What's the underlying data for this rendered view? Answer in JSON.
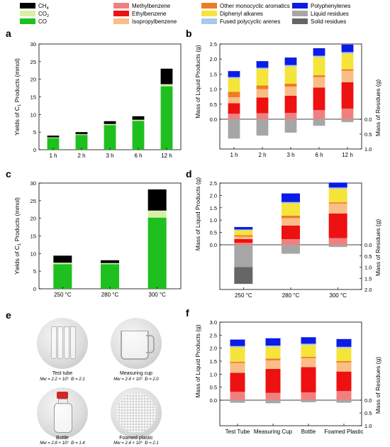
{
  "legend": {
    "items": [
      {
        "label": "CH",
        "sub": "4",
        "color": "#000000"
      },
      {
        "label": "Methylbenzene",
        "sub": "",
        "color": "#f08080"
      },
      {
        "label": "Other monocyclic aromatics",
        "sub": "",
        "color": "#f07a25"
      },
      {
        "label": "Polyphenylenes",
        "sub": "",
        "color": "#0a1ce6"
      },
      {
        "label": "CO",
        "sub": "2",
        "color": "#d8f0a6"
      },
      {
        "label": "Ethylbenzene",
        "sub": "",
        "color": "#ee1111"
      },
      {
        "label": "Diphenyl alkanes",
        "sub": "",
        "color": "#f5e43a"
      },
      {
        "label": "Liquid residues",
        "sub": "",
        "color": "#a6a6a6"
      },
      {
        "label": "CO",
        "sub": "",
        "color": "#1fbf1f"
      },
      {
        "label": "Isopropylbenzene",
        "sub": "",
        "color": "#f8be86"
      },
      {
        "label": "Fused polycyclic arenes",
        "sub": "",
        "color": "#a8c8ec"
      },
      {
        "label": "Solid residues",
        "sub": "",
        "color": "#666666"
      }
    ]
  },
  "panel_e": {
    "letter": "e",
    "items": [
      {
        "name": "Test tube",
        "mw": "Mw = 2.2 × 10⁵",
        "d": "Đ = 2.1"
      },
      {
        "name": "Measuring cup",
        "mw": "Mw = 2.4 × 10⁵",
        "d": "Đ = 2.0"
      },
      {
        "name": "Bottle",
        "mw": "Mw = 2.8 × 10⁵",
        "d": "Đ = 1.4"
      },
      {
        "name": "Foamed plastic",
        "mw": "Mw = 2.4 × 10⁵",
        "d": "Đ = 2.1"
      }
    ]
  },
  "chart_data": [
    {
      "id": "a",
      "letter": "a",
      "type": "bar",
      "categories": [
        "1 h",
        "2 h",
        "3 h",
        "6 h",
        "12 h"
      ],
      "ylabel": "Yields of C",
      "ylabel_sub": "1",
      "ylabel_tail": " Products (mmol)",
      "ylim": [
        0,
        30
      ],
      "yticks": [
        0,
        5,
        10,
        15,
        20,
        25,
        30
      ],
      "series": [
        {
          "key": "CO",
          "color": "#1fbf1f",
          "values": [
            3.3,
            4.2,
            7.0,
            8.2,
            18.0
          ]
        },
        {
          "key": "CO2",
          "color": "#d8f0a6",
          "values": [
            0.2,
            0.2,
            0.3,
            0.3,
            0.6
          ]
        },
        {
          "key": "CH4",
          "color": "#000000",
          "values": [
            0.5,
            0.6,
            0.8,
            1.0,
            4.4
          ]
        }
      ]
    },
    {
      "id": "b",
      "letter": "b",
      "type": "bar",
      "categories": [
        "1 h",
        "2 h",
        "3 h",
        "6 h",
        "12 h"
      ],
      "ylabel": "Mass of Liquid Products (g)",
      "y2label": "Mass of Residues (g)",
      "ylim": [
        0,
        2.5
      ],
      "yticks": [
        0.0,
        0.5,
        1.0,
        1.5,
        2.0,
        2.5
      ],
      "y2lim": [
        0,
        1.0
      ],
      "y2ticks": [
        0.0,
        0.5,
        1.0
      ],
      "series": [
        {
          "key": "Methylbenzene",
          "color": "#f08080",
          "values": [
            0.18,
            0.2,
            0.21,
            0.3,
            0.35
          ]
        },
        {
          "key": "Ethylbenzene",
          "color": "#ee1111",
          "values": [
            0.35,
            0.52,
            0.57,
            0.75,
            0.88
          ]
        },
        {
          "key": "Isopropylbenzene",
          "color": "#f8be86",
          "values": [
            0.2,
            0.28,
            0.3,
            0.35,
            0.38
          ]
        },
        {
          "key": "Other monocyclic aromatics",
          "color": "#f07a25",
          "values": [
            0.18,
            0.12,
            0.1,
            0.06,
            0.05
          ]
        },
        {
          "key": "Diphenyl alkanes",
          "color": "#f5e43a",
          "values": [
            0.45,
            0.55,
            0.57,
            0.6,
            0.52
          ]
        },
        {
          "key": "Fused polycyclic arenes",
          "color": "#a8c8ec",
          "values": [
            0.04,
            0.04,
            0.05,
            0.05,
            0.05
          ]
        },
        {
          "key": "Polyphenylenes",
          "color": "#0a1ce6",
          "values": [
            0.2,
            0.22,
            0.25,
            0.25,
            0.25
          ]
        }
      ],
      "residues": [
        {
          "key": "Liquid residues",
          "color": "#a6a6a6",
          "values": [
            0.65,
            0.55,
            0.45,
            0.22,
            0.1
          ]
        }
      ]
    },
    {
      "id": "c",
      "letter": "c",
      "type": "bar",
      "categories": [
        "250 °C",
        "280 °C",
        "300 °C"
      ],
      "ylabel": "Yields of C",
      "ylabel_sub": "1",
      "ylabel_tail": " Products (mmol)",
      "ylim": [
        0,
        30
      ],
      "yticks": [
        0,
        5,
        10,
        15,
        20,
        25,
        30
      ],
      "series": [
        {
          "key": "CO",
          "color": "#1fbf1f",
          "values": [
            7.0,
            7.0,
            20.2
          ]
        },
        {
          "key": "CO2",
          "color": "#d8f0a6",
          "values": [
            0.4,
            0.3,
            2.0
          ]
        },
        {
          "key": "CH4",
          "color": "#000000",
          "values": [
            2.0,
            0.8,
            6.0
          ]
        }
      ]
    },
    {
      "id": "d",
      "letter": "d",
      "type": "bar",
      "categories": [
        "250 °C",
        "280 °C",
        "300 °C"
      ],
      "ylabel": "Mass of Liquid Products (g)",
      "y2label": "Mass of Residues (g)",
      "ylim": [
        0,
        2.5
      ],
      "yticks": [
        0.0,
        0.5,
        1.0,
        1.5,
        2.0,
        2.5
      ],
      "y2lim": [
        0,
        2.0
      ],
      "y2ticks": [
        0.0,
        0.5,
        1.0,
        1.5,
        2.0
      ],
      "series": [
        {
          "key": "Methylbenzene",
          "color": "#f08080",
          "values": [
            0.08,
            0.23,
            0.27
          ]
        },
        {
          "key": "Ethylbenzene",
          "color": "#ee1111",
          "values": [
            0.15,
            0.55,
            1.0
          ]
        },
        {
          "key": "Isopropylbenzene",
          "color": "#f8be86",
          "values": [
            0.1,
            0.3,
            0.4
          ]
        },
        {
          "key": "Other monocyclic aromatics",
          "color": "#f07a25",
          "values": [
            0.06,
            0.1,
            0.05
          ]
        },
        {
          "key": "Diphenyl alkanes",
          "color": "#f5e43a",
          "values": [
            0.2,
            0.5,
            0.55
          ]
        },
        {
          "key": "Fused polycyclic arenes",
          "color": "#a8c8ec",
          "values": [
            0.03,
            0.05,
            0.05
          ]
        },
        {
          "key": "Polyphenylenes",
          "color": "#0a1ce6",
          "values": [
            0.1,
            0.35,
            0.2
          ]
        }
      ],
      "residues": [
        {
          "key": "Liquid residues",
          "color": "#a6a6a6",
          "values": [
            1.0,
            0.4,
            0.1
          ]
        },
        {
          "key": "Solid residues",
          "color": "#666666",
          "values": [
            0.75,
            0,
            0
          ]
        }
      ]
    },
    {
      "id": "f",
      "letter": "f",
      "type": "bar",
      "categories": [
        "Test Tube",
        "Measuring Cup",
        "Bottle",
        "Foamed Plastic"
      ],
      "ylabel": "Mass of Liquid Products (g)",
      "y2label": "Mass of Residues (g)",
      "ylim": [
        0,
        3.0
      ],
      "yticks": [
        0.0,
        0.5,
        1.0,
        1.5,
        2.0,
        2.5,
        3.0
      ],
      "y2lim": [
        0,
        1.0
      ],
      "y2ticks": [
        0.0,
        0.5,
        1.0
      ],
      "series": [
        {
          "key": "Methylbenzene",
          "color": "#f08080",
          "values": [
            0.32,
            0.28,
            0.3,
            0.35
          ]
        },
        {
          "key": "Ethylbenzene",
          "color": "#ee1111",
          "values": [
            0.73,
            0.92,
            0.97,
            0.75
          ]
        },
        {
          "key": "Isopropylbenzene",
          "color": "#f8be86",
          "values": [
            0.38,
            0.33,
            0.35,
            0.35
          ]
        },
        {
          "key": "Other monocyclic aromatics",
          "color": "#f07a25",
          "values": [
            0.05,
            0.07,
            0.05,
            0.05
          ]
        },
        {
          "key": "Diphenyl alkanes",
          "color": "#f5e43a",
          "values": [
            0.55,
            0.45,
            0.45,
            0.5
          ]
        },
        {
          "key": "Fused polycyclic arenes",
          "color": "#a8c8ec",
          "values": [
            0.05,
            0.05,
            0.05,
            0.05
          ]
        },
        {
          "key": "Polyphenylenes",
          "color": "#0a1ce6",
          "values": [
            0.25,
            0.28,
            0.25,
            0.3
          ]
        }
      ],
      "residues": [
        {
          "key": "Liquid residues",
          "color": "#a6a6a6",
          "values": [
            0.1,
            0.12,
            0.08,
            0.1
          ]
        }
      ]
    }
  ]
}
